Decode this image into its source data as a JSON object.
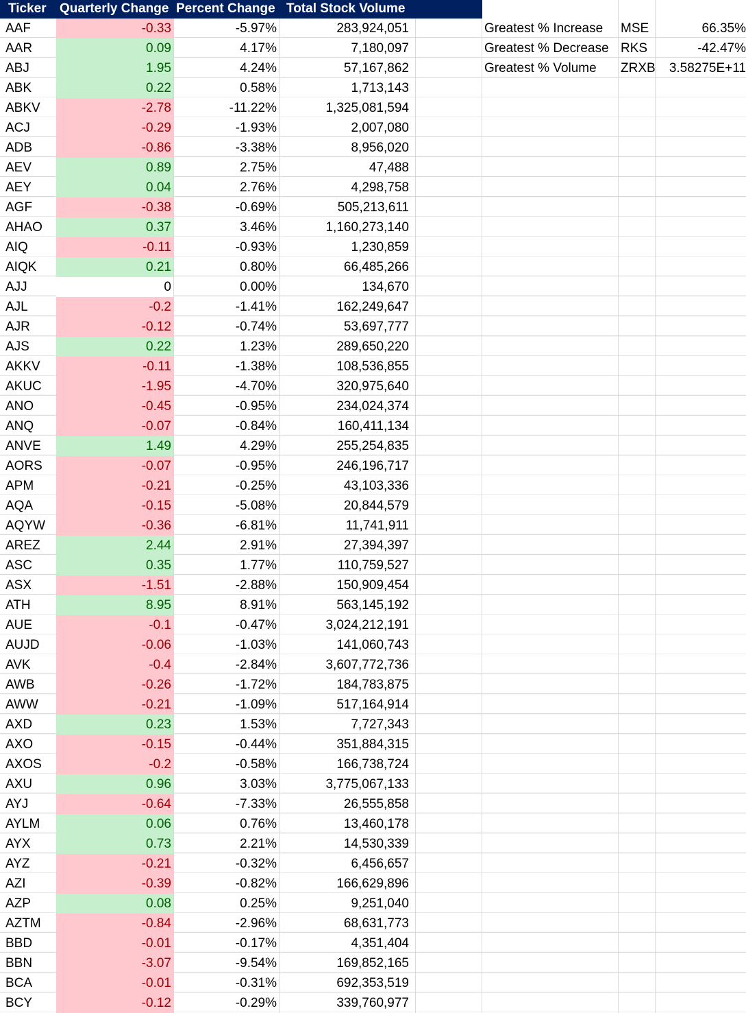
{
  "columns": {
    "ticker": "Ticker",
    "quarterly_change": "Quarterly Change",
    "percent_change": "Percent Change",
    "total_stock_volume": "Total Stock Volume"
  },
  "colors": {
    "header_bg": "#002060",
    "positive_bg": "#c6efce",
    "positive_text": "#006100",
    "negative_bg": "#ffc7ce",
    "negative_text": "#9c0006"
  },
  "rows": [
    {
      "ticker": "AAF",
      "qc": "-0.33",
      "pc": "-5.97%",
      "vol": "283,924,051"
    },
    {
      "ticker": "AAR",
      "qc": "0.09",
      "pc": "4.17%",
      "vol": "7,180,097"
    },
    {
      "ticker": "ABJ",
      "qc": "1.95",
      "pc": "4.24%",
      "vol": "57,167,862"
    },
    {
      "ticker": "ABK",
      "qc": "0.22",
      "pc": "0.58%",
      "vol": "1,713,143"
    },
    {
      "ticker": "ABKV",
      "qc": "-2.78",
      "pc": "-11.22%",
      "vol": "1,325,081,594"
    },
    {
      "ticker": "ACJ",
      "qc": "-0.29",
      "pc": "-1.93%",
      "vol": "2,007,080"
    },
    {
      "ticker": "ADB",
      "qc": "-0.86",
      "pc": "-3.38%",
      "vol": "8,956,020"
    },
    {
      "ticker": "AEV",
      "qc": "0.89",
      "pc": "2.75%",
      "vol": "47,488"
    },
    {
      "ticker": "AEY",
      "qc": "0.04",
      "pc": "2.76%",
      "vol": "4,298,758"
    },
    {
      "ticker": "AGF",
      "qc": "-0.38",
      "pc": "-0.69%",
      "vol": "505,213,611"
    },
    {
      "ticker": "AHAO",
      "qc": "0.37",
      "pc": "3.46%",
      "vol": "1,160,273,140"
    },
    {
      "ticker": "AIQ",
      "qc": "-0.11",
      "pc": "-0.93%",
      "vol": "1,230,859"
    },
    {
      "ticker": "AIQK",
      "qc": "0.21",
      "pc": "0.80%",
      "vol": "66,485,266"
    },
    {
      "ticker": "AJJ",
      "qc": "0",
      "pc": "0.00%",
      "vol": "134,670"
    },
    {
      "ticker": "AJL",
      "qc": "-0.2",
      "pc": "-1.41%",
      "vol": "162,249,647"
    },
    {
      "ticker": "AJR",
      "qc": "-0.12",
      "pc": "-0.74%",
      "vol": "53,697,777"
    },
    {
      "ticker": "AJS",
      "qc": "0.22",
      "pc": "1.23%",
      "vol": "289,650,220"
    },
    {
      "ticker": "AKKV",
      "qc": "-0.11",
      "pc": "-1.38%",
      "vol": "108,536,855"
    },
    {
      "ticker": "AKUC",
      "qc": "-1.95",
      "pc": "-4.70%",
      "vol": "320,975,640"
    },
    {
      "ticker": "ANO",
      "qc": "-0.45",
      "pc": "-0.95%",
      "vol": "234,024,374"
    },
    {
      "ticker": "ANQ",
      "qc": "-0.07",
      "pc": "-0.84%",
      "vol": "160,411,134"
    },
    {
      "ticker": "ANVE",
      "qc": "1.49",
      "pc": "4.29%",
      "vol": "255,254,835"
    },
    {
      "ticker": "AORS",
      "qc": "-0.07",
      "pc": "-0.95%",
      "vol": "246,196,717"
    },
    {
      "ticker": "APM",
      "qc": "-0.21",
      "pc": "-0.25%",
      "vol": "43,103,336"
    },
    {
      "ticker": "AQA",
      "qc": "-0.15",
      "pc": "-5.08%",
      "vol": "20,844,579"
    },
    {
      "ticker": "AQYW",
      "qc": "-0.36",
      "pc": "-6.81%",
      "vol": "11,741,911"
    },
    {
      "ticker": "AREZ",
      "qc": "2.44",
      "pc": "2.91%",
      "vol": "27,394,397"
    },
    {
      "ticker": "ASC",
      "qc": "0.35",
      "pc": "1.77%",
      "vol": "110,759,527"
    },
    {
      "ticker": "ASX",
      "qc": "-1.51",
      "pc": "-2.88%",
      "vol": "150,909,454"
    },
    {
      "ticker": "ATH",
      "qc": "8.95",
      "pc": "8.91%",
      "vol": "563,145,192"
    },
    {
      "ticker": "AUE",
      "qc": "-0.1",
      "pc": "-0.47%",
      "vol": "3,024,212,191"
    },
    {
      "ticker": "AUJD",
      "qc": "-0.06",
      "pc": "-1.03%",
      "vol": "141,060,743"
    },
    {
      "ticker": "AVK",
      "qc": "-0.4",
      "pc": "-2.84%",
      "vol": "3,607,772,736"
    },
    {
      "ticker": "AWB",
      "qc": "-0.26",
      "pc": "-1.72%",
      "vol": "184,783,875"
    },
    {
      "ticker": "AWW",
      "qc": "-0.21",
      "pc": "-1.09%",
      "vol": "517,164,914"
    },
    {
      "ticker": "AXD",
      "qc": "0.23",
      "pc": "1.53%",
      "vol": "7,727,343"
    },
    {
      "ticker": "AXO",
      "qc": "-0.15",
      "pc": "-0.44%",
      "vol": "351,884,315"
    },
    {
      "ticker": "AXOS",
      "qc": "-0.2",
      "pc": "-0.58%",
      "vol": "166,738,724"
    },
    {
      "ticker": "AXU",
      "qc": "0.96",
      "pc": "3.03%",
      "vol": "3,775,067,133"
    },
    {
      "ticker": "AYJ",
      "qc": "-0.64",
      "pc": "-7.33%",
      "vol": "26,555,858"
    },
    {
      "ticker": "AYLM",
      "qc": "0.06",
      "pc": "0.76%",
      "vol": "13,460,178"
    },
    {
      "ticker": "AYX",
      "qc": "0.73",
      "pc": "2.21%",
      "vol": "14,530,339"
    },
    {
      "ticker": "AYZ",
      "qc": "-0.21",
      "pc": "-0.32%",
      "vol": "6,456,657"
    },
    {
      "ticker": "AZI",
      "qc": "-0.39",
      "pc": "-0.82%",
      "vol": "166,629,896"
    },
    {
      "ticker": "AZP",
      "qc": "0.08",
      "pc": "0.25%",
      "vol": "9,251,040"
    },
    {
      "ticker": "AZTM",
      "qc": "-0.84",
      "pc": "-2.96%",
      "vol": "68,631,773"
    },
    {
      "ticker": "BBD",
      "qc": "-0.01",
      "pc": "-0.17%",
      "vol": "4,351,404"
    },
    {
      "ticker": "BBN",
      "qc": "-3.07",
      "pc": "-9.54%",
      "vol": "169,852,165"
    },
    {
      "ticker": "BCA",
      "qc": "-0.01",
      "pc": "-0.31%",
      "vol": "692,353,519"
    },
    {
      "ticker": "BCY",
      "qc": "-0.12",
      "pc": "-0.29%",
      "vol": "339,760,977"
    }
  ],
  "summary": [
    {
      "label": "Greatest % Increase",
      "ticker": "MSE",
      "value": "66.35%"
    },
    {
      "label": "Greatest % Decrease",
      "ticker": "RKS",
      "value": "-42.47%"
    },
    {
      "label": "Greatest % Volume",
      "ticker": "ZRXB",
      "value": "3.58275E+11"
    }
  ]
}
